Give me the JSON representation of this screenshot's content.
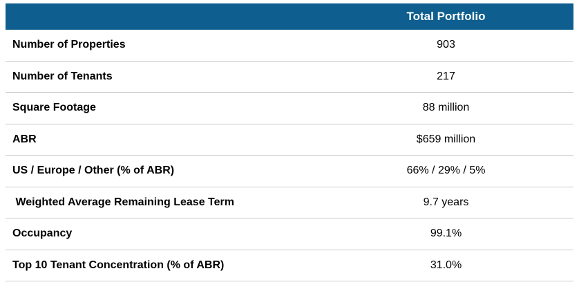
{
  "table": {
    "header": "Total Portfolio",
    "rows": [
      {
        "label": "Number of Properties",
        "value": "903"
      },
      {
        "label": "Number of Tenants",
        "value": "217"
      },
      {
        "label": "Square Footage",
        "value": "88 million"
      },
      {
        "label": "ABR",
        "value": "$659 million"
      },
      {
        "label": "US / Europe / Other (% of ABR)",
        "value": "66% / 29% / 5%"
      },
      {
        "label": " Weighted Average Remaining Lease Term",
        "value": "9.7 years"
      },
      {
        "label": "Occupancy",
        "value": "99.1%"
      },
      {
        "label": "Top 10 Tenant Concentration (% of ABR)",
        "value": "31.0%"
      }
    ],
    "colors": {
      "header_bg": "#0e5e8f",
      "header_text": "#ffffff",
      "row_divider": "#c9c9c9"
    }
  }
}
